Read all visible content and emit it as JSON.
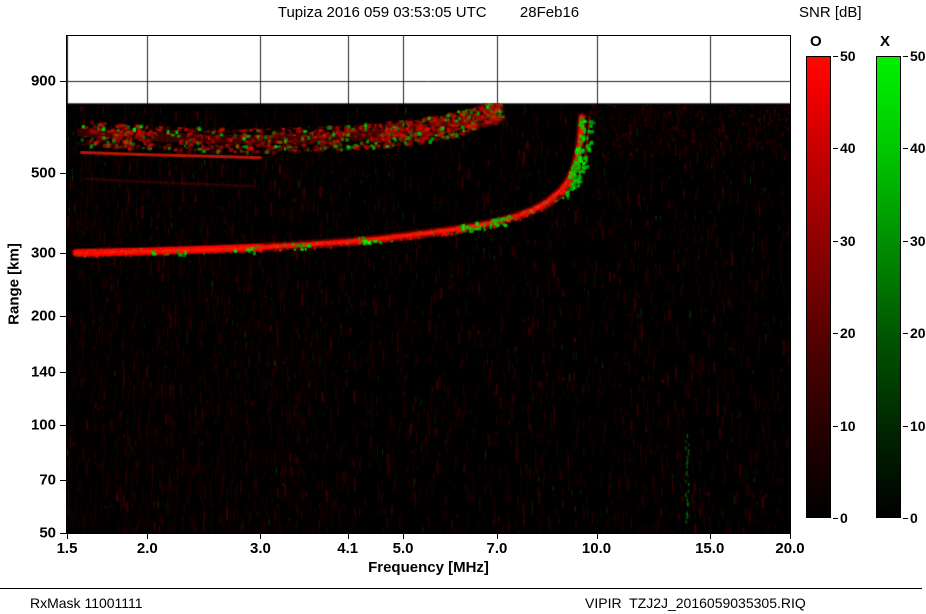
{
  "header": {
    "title": "Tupiza 2016 059 03:53:05 UTC        28Feb16",
    "snr_label": "SNR [dB]"
  },
  "axes": {
    "x_label": "Frequency [MHz]",
    "y_label": "Range [km]"
  },
  "footer": {
    "rx_mask": "RxMask 11001111",
    "file_ref": "VIPIR  TZJ2J_2016059035305.RIQ"
  },
  "chart_data": {
    "type": "heatmap",
    "title": "Tupiza 2016 059 03:53:05 UTC 28Feb16",
    "xlabel": "Frequency [MHz]",
    "ylabel": "Range [km]",
    "x_scale": "log",
    "y_scale": "log",
    "x_range": [
      1.5,
      20.0
    ],
    "y_range": [
      50,
      1200
    ],
    "data_top_km": 780,
    "grid": true,
    "x_ticks": [
      {
        "v": 1.5,
        "label": "1.5"
      },
      {
        "v": 2.0,
        "label": "2.0"
      },
      {
        "v": 3.0,
        "label": "3.0"
      },
      {
        "v": 4.1,
        "label": "4.1"
      },
      {
        "v": 5.0,
        "label": "5.0"
      },
      {
        "v": 7.0,
        "label": "7.0"
      },
      {
        "v": 10.0,
        "label": "10.0"
      },
      {
        "v": 15.0,
        "label": "15.0"
      },
      {
        "v": 20.0,
        "label": "20.0"
      }
    ],
    "y_ticks": [
      {
        "v": 900,
        "label": "900"
      },
      {
        "v": 500,
        "label": "500"
      },
      {
        "v": 300,
        "label": "300"
      },
      {
        "v": 200,
        "label": "200"
      },
      {
        "v": 140,
        "label": "140"
      },
      {
        "v": 100,
        "label": "100"
      },
      {
        "v": 70,
        "label": "70"
      },
      {
        "v": 50,
        "label": "50"
      }
    ],
    "colorbars": [
      {
        "id": "o",
        "label": "O",
        "color": "#ff0000",
        "min": 0,
        "max": 50,
        "ticks": [
          {
            "v": 0,
            "label": "0"
          },
          {
            "v": 10,
            "label": "10"
          },
          {
            "v": 20,
            "label": "20"
          },
          {
            "v": 30,
            "label": "30"
          },
          {
            "v": 40,
            "label": "40"
          },
          {
            "v": 50,
            "label": "50"
          }
        ]
      },
      {
        "id": "x",
        "label": "X",
        "color": "#00dd00",
        "min": 0,
        "max": 50,
        "ticks": [
          {
            "v": 0,
            "label": "0"
          },
          {
            "v": 10,
            "label": "10"
          },
          {
            "v": 20,
            "label": "20"
          },
          {
            "v": 30,
            "label": "30"
          },
          {
            "v": 40,
            "label": "40"
          },
          {
            "v": 50,
            "label": "50"
          }
        ]
      }
    ],
    "background_color": "#000000",
    "noise_colors": {
      "red_noise": "#5a0000",
      "green_noise": "#005a00"
    },
    "critical_frequency_mhz": 9.48,
    "traces": {
      "o_mode_first_hop": [
        [
          1.55,
          300
        ],
        [
          1.7,
          301
        ],
        [
          2.0,
          303
        ],
        [
          2.5,
          307
        ],
        [
          3.0,
          311
        ],
        [
          3.5,
          316
        ],
        [
          4.1,
          322
        ],
        [
          4.6,
          328
        ],
        [
          5.0,
          334
        ],
        [
          5.5,
          341
        ],
        [
          6.0,
          348
        ],
        [
          6.5,
          356
        ],
        [
          7.0,
          366
        ],
        [
          7.5,
          379
        ],
        [
          8.0,
          396
        ],
        [
          8.4,
          417
        ],
        [
          8.8,
          447
        ],
        [
          9.05,
          478
        ],
        [
          9.2,
          510
        ],
        [
          9.32,
          550
        ],
        [
          9.4,
          600
        ],
        [
          9.45,
          655
        ],
        [
          9.48,
          715
        ]
      ],
      "o_mode_second_hop": [
        [
          1.58,
          648
        ],
        [
          1.8,
          638
        ],
        [
          2.0,
          630
        ],
        [
          2.5,
          621
        ],
        [
          3.0,
          619
        ],
        [
          3.5,
          623
        ],
        [
          4.1,
          631
        ],
        [
          4.6,
          641
        ],
        [
          5.0,
          652
        ],
        [
          5.5,
          667
        ],
        [
          6.0,
          686
        ],
        [
          6.4,
          708
        ],
        [
          6.8,
          738
        ],
        [
          7.05,
          768
        ]
      ],
      "second_hop_streak": [
        [
          1.58,
          570
        ],
        [
          2.0,
          562
        ],
        [
          2.5,
          556
        ],
        [
          3.0,
          551
        ]
      ],
      "faint_echo": [
        [
          1.6,
          482
        ],
        [
          2.0,
          472
        ],
        [
          2.5,
          464
        ],
        [
          2.9,
          460
        ]
      ],
      "x_mode_offset_mhz": 0.27,
      "x_mode_patches": [
        [
          2.0,
          2.3
        ],
        [
          2.7,
          2.95
        ],
        [
          3.25,
          3.55
        ],
        [
          4.25,
          4.6
        ],
        [
          6.15,
          7.35
        ],
        [
          9.05,
          9.5
        ]
      ]
    },
    "rfi": [
      {
        "f": 13.8,
        "r0": 52,
        "r1": 96
      }
    ]
  }
}
